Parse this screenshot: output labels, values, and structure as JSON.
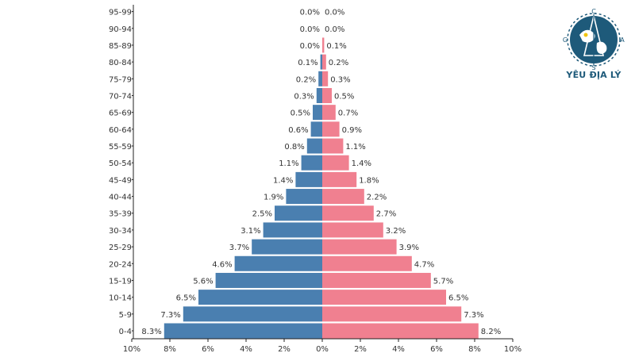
{
  "brand": {
    "name": "YÊU ĐỊA LÝ",
    "primary_color": "#1e5a7a",
    "accent_color": "#f1c40f"
  },
  "colors": {
    "male": "#4a7fb0",
    "female": "#f08090"
  },
  "chart_data": {
    "type": "bar",
    "orientation": "horizontal-population-pyramid",
    "categories": [
      "0-4",
      "5-9",
      "10-14",
      "15-19",
      "20-24",
      "25-29",
      "30-34",
      "35-39",
      "40-44",
      "45-49",
      "50-54",
      "55-59",
      "60-64",
      "65-69",
      "70-74",
      "75-79",
      "80-84",
      "85-89",
      "90-94",
      "95-99"
    ],
    "series": [
      {
        "values": [
          8.3,
          7.3,
          6.5,
          5.6,
          4.6,
          3.7,
          3.1,
          2.5,
          1.9,
          1.4,
          1.1,
          0.8,
          0.6,
          0.5,
          0.3,
          0.2,
          0.1,
          0.0,
          0.0,
          0.0
        ]
      },
      {
        "values": [
          8.2,
          7.3,
          6.5,
          5.7,
          4.7,
          3.9,
          3.2,
          2.7,
          2.2,
          1.8,
          1.4,
          1.1,
          0.9,
          0.7,
          0.5,
          0.3,
          0.2,
          0.1,
          0.0,
          0.0
        ]
      }
    ],
    "xticks": [
      "10%",
      "8%",
      "6%",
      "4%",
      "2%",
      "0%",
      "2%",
      "4%",
      "6%",
      "8%",
      "10%"
    ],
    "xlim": [
      -10,
      10
    ],
    "unit": "%",
    "title": "",
    "xlabel": "",
    "ylabel": "",
    "legend": "none",
    "grid": false
  }
}
